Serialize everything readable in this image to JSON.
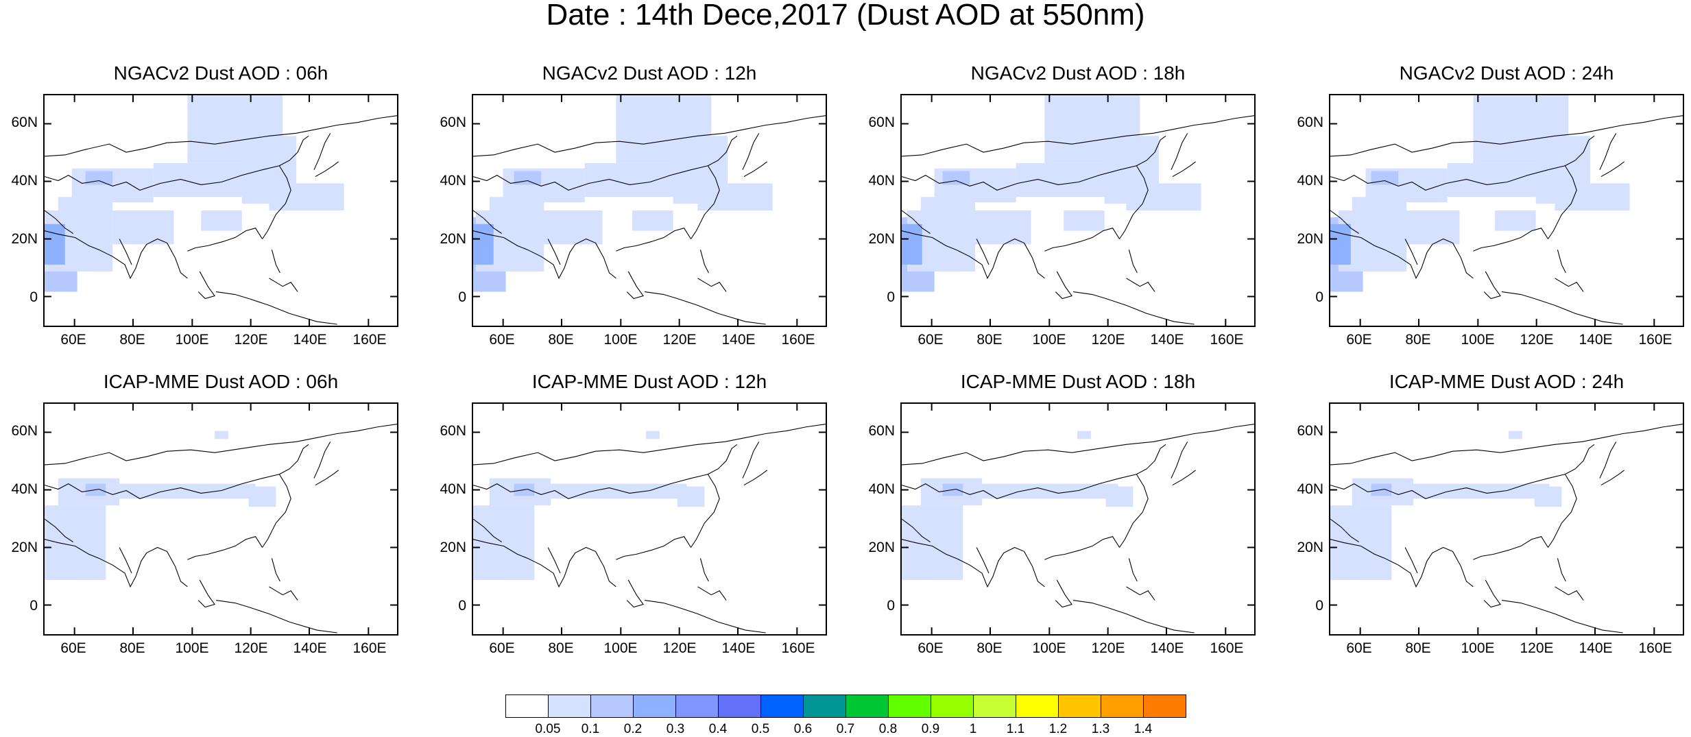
{
  "title": "Date : 14th Dece,2017 (Dust AOD at 550nm)",
  "panels": [
    {
      "title": "NGACv2 Dust AOD : 06h"
    },
    {
      "title": "NGACv2 Dust AOD : 12h"
    },
    {
      "title": "NGACv2 Dust AOD : 18h"
    },
    {
      "title": "NGACv2 Dust AOD : 24h"
    },
    {
      "title": "ICAP-MME Dust AOD : 06h"
    },
    {
      "title": "ICAP-MME Dust AOD : 12h"
    },
    {
      "title": "ICAP-MME Dust AOD : 18h"
    },
    {
      "title": "ICAP-MME Dust AOD : 24h"
    }
  ],
  "axes": {
    "lat_labels": [
      "60N",
      "40N",
      "20N",
      "0"
    ],
    "lon_labels": [
      "60E",
      "80E",
      "100E",
      "120E",
      "140E",
      "160E"
    ]
  },
  "colorbar": {
    "colors": [
      "#ffffff",
      "#d6e1ff",
      "#b5c9ff",
      "#8eb2ff",
      "#7f96ff",
      "#6370f8",
      "#0063ff",
      "#009696",
      "#00c633",
      "#63ff00",
      "#96ff00",
      "#c6ff33",
      "#ffff00",
      "#ffc600",
      "#ffa000",
      "#ff7c00",
      "#ff1900"
    ],
    "labels": [
      "0.05",
      "0.1",
      "0.2",
      "0.3",
      "0.4",
      "0.5",
      "0.6",
      "0.7",
      "0.8",
      "0.9",
      "1",
      "1.1",
      "1.2",
      "1.3",
      "1.4"
    ]
  }
}
